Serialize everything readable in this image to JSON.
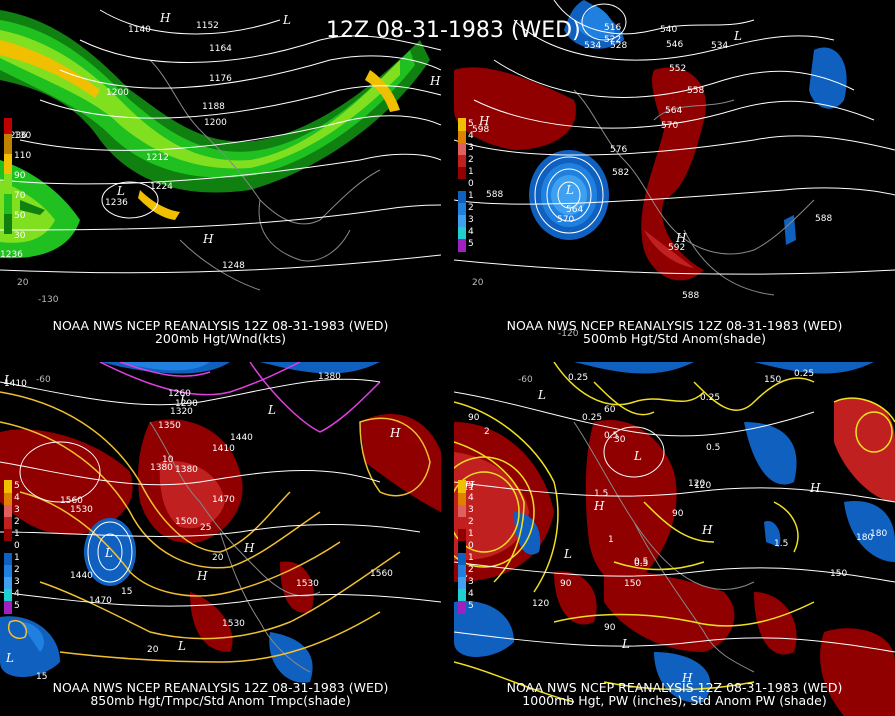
{
  "banner": "12Z 08-31-1983 (WED)",
  "panels": [
    {
      "caption1": "NOAA NWS NCEP REANALYSIS 12Z 08-31-1983 (WED)",
      "caption2": "200mb Hgt/Wnd(kts)",
      "legend": [
        {
          "label": "130",
          "color": "#c00000"
        },
        {
          "label": "110",
          "color": "#c08000"
        },
        {
          "label": "90",
          "color": "#f0c000"
        },
        {
          "label": "70",
          "color": "#80e020"
        },
        {
          "label": "50",
          "color": "#20c020"
        },
        {
          "label": "30",
          "color": "#108010"
        }
      ],
      "labels": [
        "1140",
        "1152",
        "1164",
        "1176",
        "1188",
        "1200",
        "1212",
        "1224",
        "1236",
        "1248",
        "1236",
        "1236",
        "1200"
      ],
      "lon_labels": [
        "-130",
        "20"
      ]
    },
    {
      "caption1": "NOAA NWS NCEP REANALYSIS 12Z 08-31-1983 (WED)",
      "caption2": "500mb Hgt/Std Anom(shade)",
      "legend": [
        {
          "label": "5",
          "color": "#f0c000"
        },
        {
          "label": "4",
          "color": "#e08000"
        },
        {
          "label": "3",
          "color": "#e06060"
        },
        {
          "label": "2",
          "color": "#c02020"
        },
        {
          "label": "1",
          "color": "#900000"
        },
        {
          "label": "0",
          "color": "#000000"
        },
        {
          "label": "1",
          "color": "#1060c0"
        },
        {
          "label": "2",
          "color": "#2080e0"
        },
        {
          "label": "3",
          "color": "#40a0f0"
        },
        {
          "label": "4",
          "color": "#20d0d0"
        },
        {
          "label": "5",
          "color": "#a020c0"
        }
      ],
      "labels": [
        "516",
        "522",
        "528",
        "534",
        "540",
        "546",
        "534",
        "552",
        "558",
        "564",
        "570",
        "576",
        "582",
        "588",
        "588",
        "588",
        "564",
        "570",
        "592",
        "598"
      ],
      "lon_labels": [
        "-120",
        "20"
      ]
    },
    {
      "caption1": "NOAA NWS NCEP REANALYSIS 12Z 08-31-1983 (WED)",
      "caption2": "850mb Hgt/Tmpc/Std Anom Tmpc(shade)",
      "legend": [
        {
          "label": "5",
          "color": "#f0c000"
        },
        {
          "label": "4",
          "color": "#e08000"
        },
        {
          "label": "3",
          "color": "#e06060"
        },
        {
          "label": "2",
          "color": "#c02020"
        },
        {
          "label": "1",
          "color": "#900000"
        },
        {
          "label": "0",
          "color": "#000000"
        },
        {
          "label": "1",
          "color": "#1060c0"
        },
        {
          "label": "2",
          "color": "#2080e0"
        },
        {
          "label": "3",
          "color": "#40a0f0"
        },
        {
          "label": "4",
          "color": "#20d0d0"
        },
        {
          "label": "5",
          "color": "#a020c0"
        }
      ],
      "labels": [
        "1410",
        "1380",
        "1350",
        "1320",
        "1290",
        "1260",
        "1380",
        "1440",
        "1410",
        "1380",
        "1470",
        "1500",
        "1530",
        "1560",
        "1470",
        "1440",
        "1530",
        "1560",
        "1530",
        "15",
        "20",
        "25",
        "20",
        "15",
        "10"
      ],
      "lon_labels": [
        "-60"
      ]
    },
    {
      "caption1": "NOAA NWS NCEP REANALYSIS 12Z 08-31-1983 (WED)",
      "caption2": "1000mb Hgt, PW (inches), Std Anom PW (shade)",
      "legend": [
        {
          "label": "5",
          "color": "#f0c000"
        },
        {
          "label": "4",
          "color": "#e08000"
        },
        {
          "label": "3",
          "color": "#e06060"
        },
        {
          "label": "2",
          "color": "#c02020"
        },
        {
          "label": "1",
          "color": "#900000"
        },
        {
          "label": "0",
          "color": "#000000"
        },
        {
          "label": "1",
          "color": "#1060c0"
        },
        {
          "label": "2",
          "color": "#2080e0"
        },
        {
          "label": "3",
          "color": "#40a0f0"
        },
        {
          "label": "4",
          "color": "#20d0d0"
        },
        {
          "label": "5",
          "color": "#a020c0"
        }
      ],
      "labels": [
        "0.25",
        "0.25",
        "0.5",
        "0.25",
        "0.25",
        "0.5",
        "2",
        "1.5",
        "1",
        "0.5",
        "90",
        "60",
        "30",
        "120",
        "150",
        "180",
        "120",
        "90",
        "150",
        "90",
        "90",
        "120",
        "150",
        "180",
        "0.5",
        "1.5"
      ],
      "lon_labels": [
        "-60"
      ]
    }
  ]
}
